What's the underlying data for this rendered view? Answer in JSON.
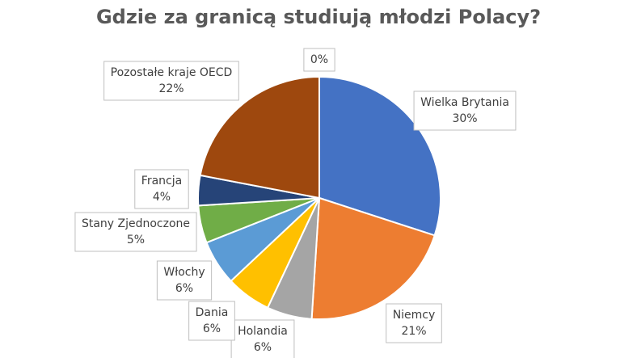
{
  "chart_data": {
    "type": "pie",
    "title": "Gdzie za granicą studiują młodzi Polacy?",
    "categories": [
      "Wielka Brytania",
      "Niemcy",
      "Holandia",
      "Dania",
      "Włochy",
      "Stany Zjednoczone",
      "Francja",
      "Pozostałe kraje OECD",
      null
    ],
    "values": [
      30,
      21,
      6,
      6,
      6,
      5,
      4,
      22,
      0
    ],
    "value_labels": [
      "30%",
      "21%",
      "6%",
      "6%",
      "6%",
      "5%",
      "4%",
      "22%",
      "0%"
    ],
    "colors": [
      "#4472c4",
      "#ed7d31",
      "#a5a5a5",
      "#ffc000",
      "#5b9bd5",
      "#70ad47",
      "#264478",
      "#9e480e",
      "#636363"
    ]
  }
}
